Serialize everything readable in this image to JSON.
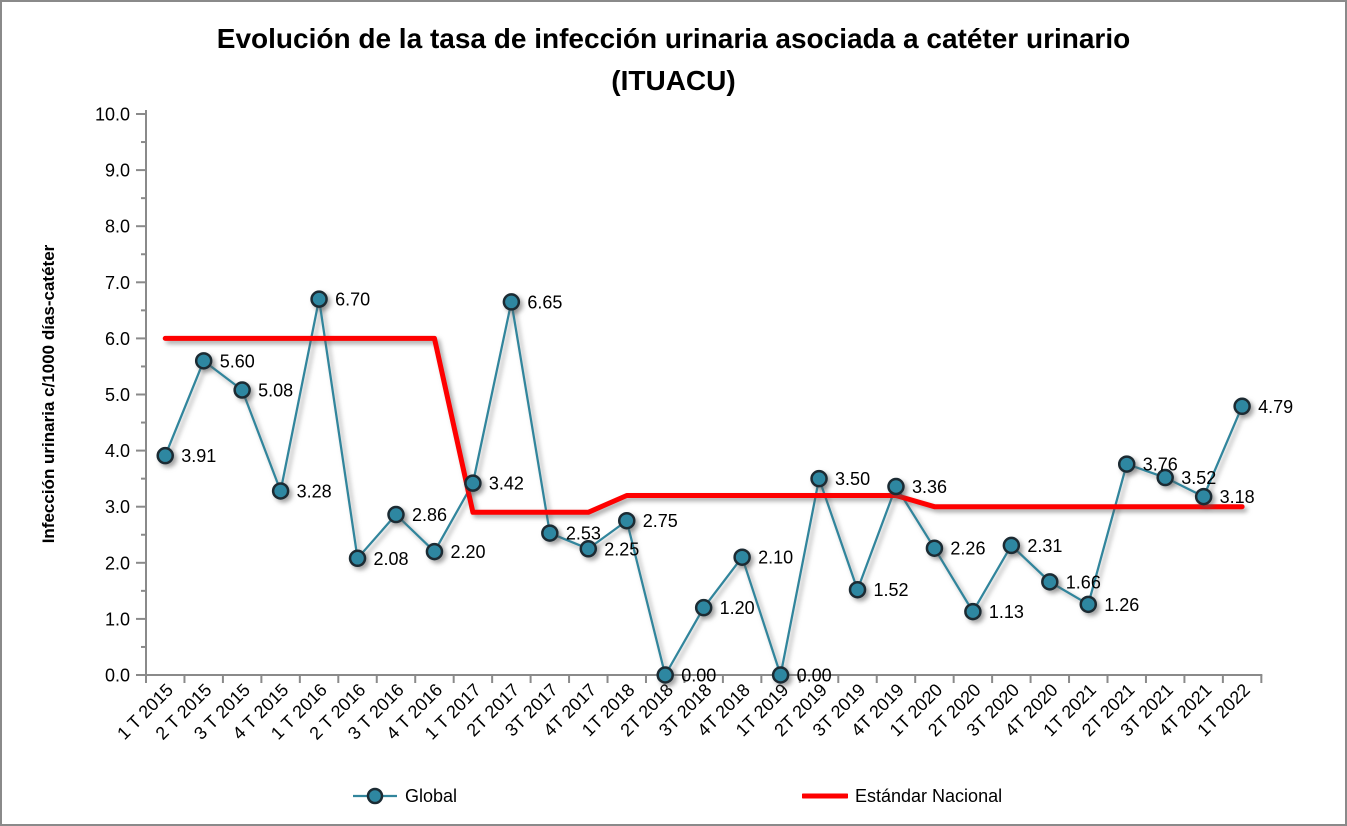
{
  "frame": {
    "background": "#ffffff",
    "border_color": "#8a8a8a"
  },
  "header": {
    "title_line1": "Evolución de la tasa de infección urinaria asociada a catéter urinario",
    "title_line2": "(ITUACU)"
  },
  "legend": {
    "position": "bottom",
    "items": [
      {
        "label": "Global",
        "swatch": "teal-line-with-circle-marker"
      },
      {
        "label": "Estándar Nacional",
        "swatch": "red-line"
      }
    ]
  },
  "chart_data": {
    "type": "line",
    "title": "Evolución de la tasa de infección urinaria asociada a catéter urinario (ITUACU)",
    "xlabel": "",
    "ylabel": "Infección urinaria c/1000 días-catéter",
    "ylim": [
      0.0,
      10.0
    ],
    "ytick_interval": 1.0,
    "ytick_minor_interval": 0.5,
    "ytick_labels": [
      "0.0",
      "1.0",
      "2.0",
      "3.0",
      "4.0",
      "5.0",
      "6.0",
      "7.0",
      "8.0",
      "9.0",
      "10.0"
    ],
    "grid": false,
    "legend_position": "bottom",
    "x_tick_label_rotation_deg": 45,
    "categories": [
      "1 T 2015",
      "2 T 2015",
      "3 T 2015",
      "4 T 2015",
      "1 T 2016",
      "2 T 2016",
      "3 T 2016",
      "4 T 2016",
      "1 T 2017",
      "2T 2017",
      "3T 2017",
      "4T 2017",
      "1T 2018",
      "2T 2018",
      "3T 2018",
      "4T 2018",
      "1T 2019",
      "2T 2019",
      "3T 2019",
      "4T 2019",
      "1T 2020",
      "2T 2020",
      "3T 2020",
      "4T 2020",
      "1T 2021",
      "2T 2021",
      "3T 2021",
      "4T 2021",
      "1T 2022"
    ],
    "series": [
      {
        "name": "Global",
        "style": "line_with_markers",
        "line_color": "#31859C",
        "marker": "circle",
        "marker_fill": "#2E87A1",
        "marker_outline": "#1C2B33",
        "values": [
          3.91,
          5.6,
          5.08,
          3.28,
          6.7,
          2.08,
          2.86,
          2.2,
          3.42,
          6.65,
          2.53,
          2.25,
          2.75,
          0.0,
          1.2,
          2.1,
          0.0,
          3.5,
          1.52,
          3.36,
          2.26,
          1.13,
          2.31,
          1.66,
          1.26,
          3.76,
          3.52,
          3.18,
          4.79
        ],
        "data_labels": [
          "3.91",
          "5.60",
          "5.08",
          "3.28",
          "6.70",
          "2.08",
          "2.86",
          "2.20",
          "3.42",
          "6.65",
          "2.53",
          "2.25",
          "2.75",
          "0.00",
          "1.20",
          "2.10",
          "0.00",
          "3.50",
          "1.52",
          "3.36",
          "2.26",
          "1.13",
          "2.31",
          "1.66",
          "1.26",
          "3.76",
          "3.52",
          "3.18",
          "4.79"
        ]
      },
      {
        "name": "Estándar Nacional",
        "style": "line",
        "line_color": "#FE0000",
        "marker": "none",
        "values": [
          6.0,
          6.0,
          6.0,
          6.0,
          6.0,
          6.0,
          6.0,
          6.0,
          2.9,
          2.9,
          2.9,
          2.9,
          3.2,
          3.2,
          3.2,
          3.2,
          3.2,
          3.2,
          3.2,
          3.2,
          3.0,
          3.0,
          3.0,
          3.0,
          3.0,
          3.0,
          3.0,
          3.0,
          3.0
        ]
      }
    ],
    "colors": {
      "axis": "#8a8a8a",
      "text": "#000000",
      "global_line": "#31859C",
      "global_marker_fill": "#2E87A1",
      "global_marker_outline": "#1C2B33",
      "estandar_line": "#FE0000"
    }
  }
}
